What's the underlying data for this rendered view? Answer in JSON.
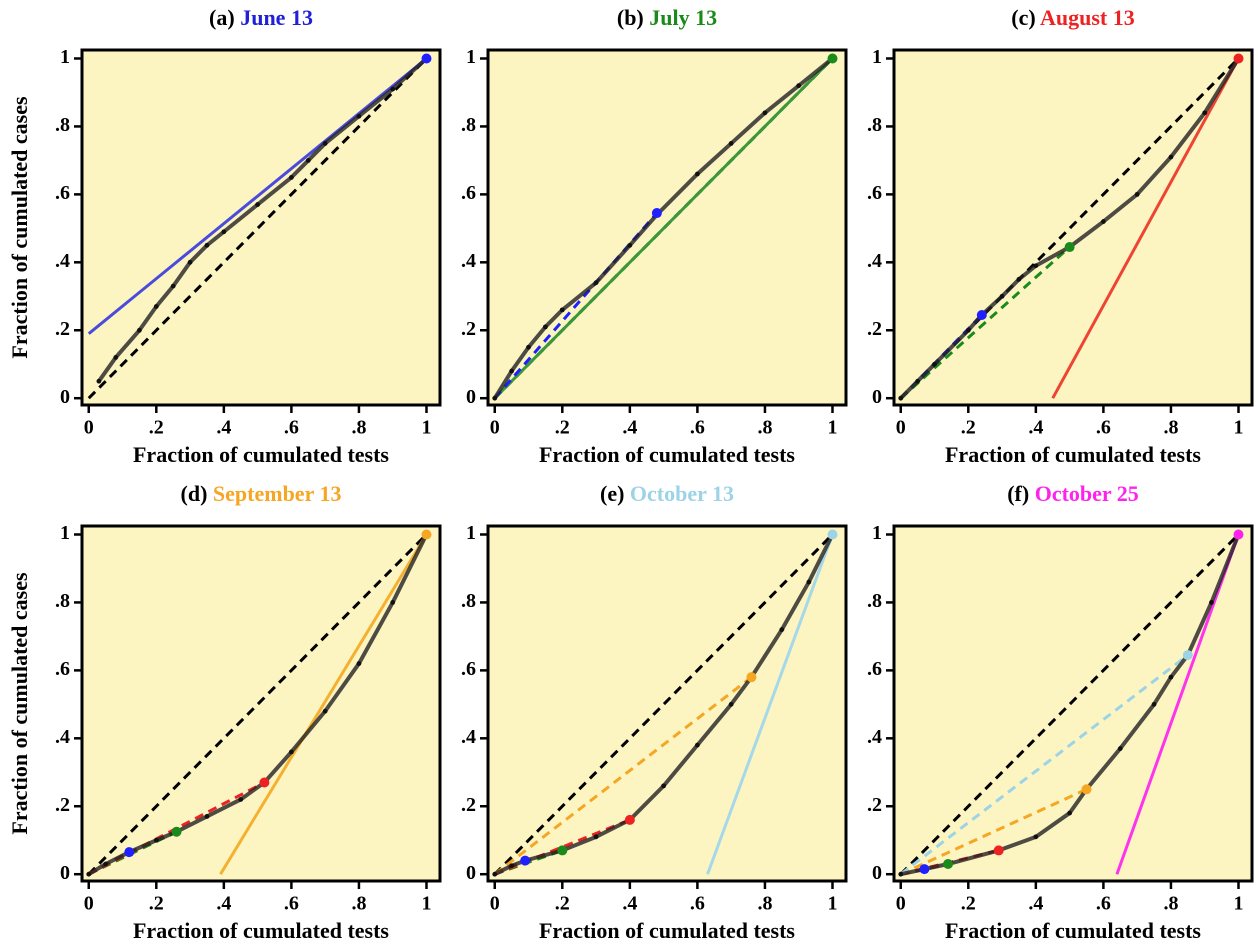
{
  "chart_data": [
    {
      "type": "line",
      "title_prefix": "(a)",
      "title_date": "June 13",
      "title_color": "#2020d8",
      "background": "#fcf5c2",
      "xlabel": "Fraction of cumulated tests",
      "ylabel": "Fraction of cumulated cases",
      "xlim": [
        -0.02,
        1.04
      ],
      "ylim": [
        -0.02,
        1.025
      ],
      "xticks": [
        0,
        {
          "value": 0.2,
          "label": ".2"
        },
        {
          "value": 0.4,
          "label": ".4"
        },
        {
          "value": 0.6,
          "label": ".6"
        },
        {
          "value": 0.8,
          "label": ".8"
        },
        1
      ],
      "yticks": [
        0,
        {
          "value": 0.2,
          "label": ".2"
        },
        {
          "value": 0.4,
          "label": ".4"
        },
        {
          "value": 0.6,
          "label": ".6"
        },
        {
          "value": 0.8,
          "label": ".8"
        },
        1
      ],
      "series": [
        {
          "style": "dashed",
          "color": "#000000",
          "x": [
            0,
            1
          ],
          "values": [
            0,
            1
          ]
        },
        {
          "style": "solid",
          "color": "#4b4bdb",
          "x": [
            0,
            1
          ],
          "values": [
            0.19,
            1
          ]
        },
        {
          "style": "curve",
          "color": "#222222",
          "x": [
            0.03,
            0.08,
            0.15,
            0.2,
            0.25,
            0.3,
            0.35,
            0.4,
            0.5,
            0.6,
            0.65,
            0.7,
            0.8,
            0.9,
            1
          ],
          "values": [
            0.05,
            0.12,
            0.2,
            0.27,
            0.33,
            0.4,
            0.45,
            0.49,
            0.57,
            0.65,
            0.7,
            0.75,
            0.83,
            0.91,
            1
          ]
        },
        {
          "style": "point",
          "color": "#2020ff",
          "x": [
            1
          ],
          "values": [
            1
          ]
        }
      ]
    },
    {
      "type": "line",
      "title_prefix": "(b)",
      "title_date": "July 13",
      "title_color": "#1a8a1a",
      "background": "#fcf5c2",
      "xlabel": "Fraction of cumulated tests",
      "xlim": [
        -0.02,
        1.04
      ],
      "ylim": [
        -0.02,
        1.025
      ],
      "xticks": [
        0,
        {
          "value": 0.2,
          "label": ".2"
        },
        {
          "value": 0.4,
          "label": ".4"
        },
        {
          "value": 0.6,
          "label": ".6"
        },
        {
          "value": 0.8,
          "label": ".8"
        },
        1
      ],
      "yticks": [
        0,
        {
          "value": 0.2,
          "label": ".2"
        },
        {
          "value": 0.4,
          "label": ".4"
        },
        {
          "value": 0.6,
          "label": ".6"
        },
        {
          "value": 0.8,
          "label": ".8"
        },
        1
      ],
      "series": [
        {
          "style": "dashed",
          "color": "#000000",
          "x": [
            0,
            1
          ],
          "values": [
            0,
            1
          ]
        },
        {
          "style": "solid",
          "color": "#3a9a3a",
          "x": [
            0,
            1
          ],
          "values": [
            0,
            1
          ]
        },
        {
          "style": "dashed",
          "color": "#2020ff",
          "x": [
            0,
            0.48
          ],
          "values": [
            0,
            0.545
          ]
        },
        {
          "style": "curve",
          "color": "#222222",
          "x": [
            0,
            0.05,
            0.1,
            0.15,
            0.2,
            0.3,
            0.4,
            0.48,
            0.6,
            0.7,
            0.8,
            0.9,
            1
          ],
          "values": [
            0,
            0.08,
            0.15,
            0.21,
            0.26,
            0.34,
            0.45,
            0.54,
            0.66,
            0.75,
            0.84,
            0.92,
            1
          ]
        },
        {
          "style": "point",
          "color": "#2020ff",
          "x": [
            0.48
          ],
          "values": [
            0.545
          ]
        },
        {
          "style": "point",
          "color": "#1a8a1a",
          "x": [
            1
          ],
          "values": [
            1
          ]
        }
      ]
    },
    {
      "type": "line",
      "title_prefix": "(c)",
      "title_date": "August 13",
      "title_color": "#ee2222",
      "background": "#fcf5c2",
      "xlabel": "Fraction of cumulated tests",
      "xlim": [
        -0.02,
        1.04
      ],
      "ylim": [
        -0.02,
        1.025
      ],
      "xticks": [
        0,
        {
          "value": 0.2,
          "label": ".2"
        },
        {
          "value": 0.4,
          "label": ".4"
        },
        {
          "value": 0.6,
          "label": ".6"
        },
        {
          "value": 0.8,
          "label": ".8"
        },
        1
      ],
      "yticks": [
        0,
        {
          "value": 0.2,
          "label": ".2"
        },
        {
          "value": 0.4,
          "label": ".4"
        },
        {
          "value": 0.6,
          "label": ".6"
        },
        {
          "value": 0.8,
          "label": ".8"
        },
        1
      ],
      "series": [
        {
          "style": "dashed",
          "color": "#000000",
          "x": [
            0,
            1
          ],
          "values": [
            0,
            1
          ]
        },
        {
          "style": "solid",
          "color": "#ee4433",
          "x": [
            0.45,
            1
          ],
          "values": [
            0,
            1
          ]
        },
        {
          "style": "dashed",
          "color": "#2020ff",
          "x": [
            0,
            0.24
          ],
          "values": [
            0,
            0.245
          ]
        },
        {
          "style": "dashed",
          "color": "#1a8a1a",
          "x": [
            0,
            0.5
          ],
          "values": [
            0,
            0.445
          ]
        },
        {
          "style": "curve",
          "color": "#222222",
          "x": [
            0,
            0.05,
            0.1,
            0.2,
            0.24,
            0.3,
            0.35,
            0.4,
            0.5,
            0.6,
            0.7,
            0.8,
            0.9,
            1
          ],
          "values": [
            0,
            0.05,
            0.1,
            0.2,
            0.245,
            0.3,
            0.35,
            0.39,
            0.445,
            0.52,
            0.6,
            0.71,
            0.84,
            1
          ]
        },
        {
          "style": "point",
          "color": "#2020ff",
          "x": [
            0.24
          ],
          "values": [
            0.245
          ]
        },
        {
          "style": "point",
          "color": "#1a8a1a",
          "x": [
            0.5
          ],
          "values": [
            0.445
          ]
        },
        {
          "style": "point",
          "color": "#ee2222",
          "x": [
            1
          ],
          "values": [
            1
          ]
        }
      ]
    },
    {
      "type": "line",
      "title_prefix": "(d)",
      "title_date": "September 13",
      "title_color": "#f5a623",
      "background": "#fcf5c2",
      "xlabel": "Fraction of cumulated tests",
      "ylabel": "Fraction of cumulated cases",
      "xlim": [
        -0.02,
        1.04
      ],
      "ylim": [
        -0.02,
        1.025
      ],
      "xticks": [
        0,
        {
          "value": 0.2,
          "label": ".2"
        },
        {
          "value": 0.4,
          "label": ".4"
        },
        {
          "value": 0.6,
          "label": ".6"
        },
        {
          "value": 0.8,
          "label": ".8"
        },
        1
      ],
      "yticks": [
        0,
        {
          "value": 0.2,
          "label": ".2"
        },
        {
          "value": 0.4,
          "label": ".4"
        },
        {
          "value": 0.6,
          "label": ".6"
        },
        {
          "value": 0.8,
          "label": ".8"
        },
        1
      ],
      "series": [
        {
          "style": "dashed",
          "color": "#000000",
          "x": [
            0,
            1
          ],
          "values": [
            0,
            1
          ]
        },
        {
          "style": "solid",
          "color": "#f5b030",
          "x": [
            0.39,
            1
          ],
          "values": [
            0,
            1
          ]
        },
        {
          "style": "dashed",
          "color": "#2020ff",
          "x": [
            0,
            0.12
          ],
          "values": [
            0,
            0.065
          ]
        },
        {
          "style": "dashed",
          "color": "#1a8a1a",
          "x": [
            0,
            0.26
          ],
          "values": [
            0,
            0.125
          ]
        },
        {
          "style": "dashed",
          "color": "#ee2222",
          "x": [
            0,
            0.52
          ],
          "values": [
            0,
            0.27
          ]
        },
        {
          "style": "curve",
          "color": "#222222",
          "x": [
            0,
            0.05,
            0.12,
            0.2,
            0.26,
            0.35,
            0.45,
            0.52,
            0.6,
            0.7,
            0.8,
            0.9,
            1
          ],
          "values": [
            0,
            0.03,
            0.065,
            0.1,
            0.125,
            0.17,
            0.22,
            0.27,
            0.36,
            0.48,
            0.62,
            0.8,
            1
          ]
        },
        {
          "style": "point",
          "color": "#2020ff",
          "x": [
            0.12
          ],
          "values": [
            0.065
          ]
        },
        {
          "style": "point",
          "color": "#1a8a1a",
          "x": [
            0.26
          ],
          "values": [
            0.125
          ]
        },
        {
          "style": "point",
          "color": "#ee2222",
          "x": [
            0.52
          ],
          "values": [
            0.27
          ]
        },
        {
          "style": "point",
          "color": "#f5a623",
          "x": [
            1
          ],
          "values": [
            1
          ]
        }
      ]
    },
    {
      "type": "line",
      "title_prefix": "(e)",
      "title_date": "October 13",
      "title_color": "#9dd3e6",
      "background": "#fcf5c2",
      "xlabel": "Fraction of cumulated tests",
      "xlim": [
        -0.02,
        1.04
      ],
      "ylim": [
        -0.02,
        1.025
      ],
      "xticks": [
        0,
        {
          "value": 0.2,
          "label": ".2"
        },
        {
          "value": 0.4,
          "label": ".4"
        },
        {
          "value": 0.6,
          "label": ".6"
        },
        {
          "value": 0.8,
          "label": ".8"
        },
        1
      ],
      "yticks": [
        0,
        {
          "value": 0.2,
          "label": ".2"
        },
        {
          "value": 0.4,
          "label": ".4"
        },
        {
          "value": 0.6,
          "label": ".6"
        },
        {
          "value": 0.8,
          "label": ".8"
        },
        1
      ],
      "series": [
        {
          "style": "dashed",
          "color": "#000000",
          "x": [
            0,
            1
          ],
          "values": [
            0,
            1
          ]
        },
        {
          "style": "solid",
          "color": "#a5d8e8",
          "x": [
            0.63,
            1
          ],
          "values": [
            0,
            1
          ]
        },
        {
          "style": "dashed",
          "color": "#2020ff",
          "x": [
            0,
            0.09
          ],
          "values": [
            0,
            0.04
          ]
        },
        {
          "style": "dashed",
          "color": "#1a8a1a",
          "x": [
            0,
            0.2
          ],
          "values": [
            0,
            0.07
          ]
        },
        {
          "style": "dashed",
          "color": "#ee2222",
          "x": [
            0,
            0.4
          ],
          "values": [
            0,
            0.16
          ]
        },
        {
          "style": "dashed",
          "color": "#f5a623",
          "x": [
            0,
            0.76
          ],
          "values": [
            0,
            0.58
          ]
        },
        {
          "style": "curve",
          "color": "#222222",
          "x": [
            0,
            0.05,
            0.09,
            0.2,
            0.3,
            0.4,
            0.5,
            0.6,
            0.7,
            0.76,
            0.85,
            0.93,
            1
          ],
          "values": [
            0,
            0.025,
            0.04,
            0.07,
            0.11,
            0.16,
            0.26,
            0.38,
            0.5,
            0.58,
            0.72,
            0.86,
            1
          ]
        },
        {
          "style": "point",
          "color": "#2020ff",
          "x": [
            0.09
          ],
          "values": [
            0.04
          ]
        },
        {
          "style": "point",
          "color": "#1a8a1a",
          "x": [
            0.2
          ],
          "values": [
            0.07
          ]
        },
        {
          "style": "point",
          "color": "#ee2222",
          "x": [
            0.4
          ],
          "values": [
            0.16
          ]
        },
        {
          "style": "point",
          "color": "#f5a623",
          "x": [
            0.76
          ],
          "values": [
            0.58
          ]
        },
        {
          "style": "point",
          "color": "#9dd3e6",
          "x": [
            1
          ],
          "values": [
            1
          ]
        }
      ]
    },
    {
      "type": "line",
      "title_prefix": "(f)",
      "title_date": "October 25",
      "title_color": "#ff22ee",
      "background": "#fcf5c2",
      "xlabel": "Fraction of cumulated tests",
      "xlim": [
        -0.02,
        1.04
      ],
      "ylim": [
        -0.02,
        1.025
      ],
      "xticks": [
        0,
        {
          "value": 0.2,
          "label": ".2"
        },
        {
          "value": 0.4,
          "label": ".4"
        },
        {
          "value": 0.6,
          "label": ".6"
        },
        {
          "value": 0.8,
          "label": ".8"
        },
        1
      ],
      "yticks": [
        0,
        {
          "value": 0.2,
          "label": ".2"
        },
        {
          "value": 0.4,
          "label": ".4"
        },
        {
          "value": 0.6,
          "label": ".6"
        },
        {
          "value": 0.8,
          "label": ".8"
        },
        1
      ],
      "series": [
        {
          "style": "dashed",
          "color": "#000000",
          "x": [
            0,
            1
          ],
          "values": [
            0,
            1
          ]
        },
        {
          "style": "solid",
          "color": "#ff33ee",
          "x": [
            0.64,
            1
          ],
          "values": [
            0,
            1
          ]
        },
        {
          "style": "dashed",
          "color": "#2020ff",
          "x": [
            0,
            0.07
          ],
          "values": [
            0,
            0.015
          ]
        },
        {
          "style": "dashed",
          "color": "#1a8a1a",
          "x": [
            0,
            0.14
          ],
          "values": [
            0,
            0.03
          ]
        },
        {
          "style": "dashed",
          "color": "#ee2222",
          "x": [
            0,
            0.29
          ],
          "values": [
            0,
            0.07
          ]
        },
        {
          "style": "dashed",
          "color": "#f5a623",
          "x": [
            0,
            0.55
          ],
          "values": [
            0,
            0.25
          ]
        },
        {
          "style": "dashed",
          "color": "#9dd3e6",
          "x": [
            0,
            0.85
          ],
          "values": [
            0,
            0.645
          ]
        },
        {
          "style": "curve",
          "color": "#222222",
          "x": [
            0,
            0.07,
            0.14,
            0.29,
            0.4,
            0.5,
            0.55,
            0.65,
            0.75,
            0.8,
            0.85,
            0.92,
            1
          ],
          "values": [
            0,
            0.015,
            0.03,
            0.07,
            0.11,
            0.18,
            0.25,
            0.37,
            0.5,
            0.58,
            0.645,
            0.8,
            1
          ]
        },
        {
          "style": "point",
          "color": "#2020ff",
          "x": [
            0.07
          ],
          "values": [
            0.015
          ]
        },
        {
          "style": "point",
          "color": "#1a8a1a",
          "x": [
            0.14
          ],
          "values": [
            0.03
          ]
        },
        {
          "style": "point",
          "color": "#ee2222",
          "x": [
            0.29
          ],
          "values": [
            0.07
          ]
        },
        {
          "style": "point",
          "color": "#f5a623",
          "x": [
            0.55
          ],
          "values": [
            0.25
          ]
        },
        {
          "style": "point",
          "color": "#9dd3e6",
          "x": [
            0.85
          ],
          "values": [
            0.645
          ]
        },
        {
          "style": "point",
          "color": "#ff22ee",
          "x": [
            1
          ],
          "values": [
            1
          ]
        }
      ]
    }
  ]
}
